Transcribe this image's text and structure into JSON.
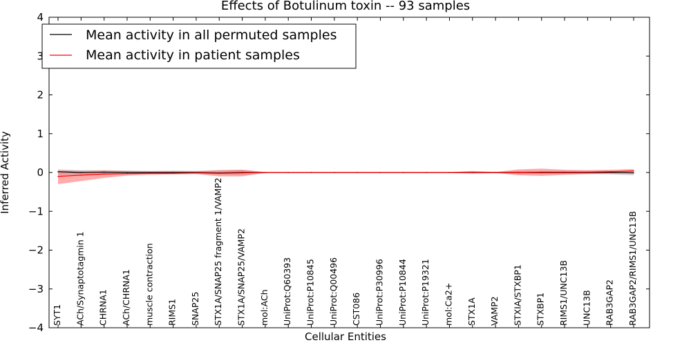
{
  "chart_data": {
    "type": "line",
    "title": "Effects of Botulinum toxin -- 93 samples",
    "xlabel": "Cellular Entities",
    "ylabel": "Inferred Activity",
    "ylim": [
      -4,
      4
    ],
    "yticks": [
      -4,
      -3,
      -2,
      -1,
      0,
      1,
      2,
      3,
      4
    ],
    "yticklabels": [
      "−4",
      "−3",
      "−2",
      "−1",
      "0",
      "1",
      "2",
      "3",
      "4"
    ],
    "categories": [
      "SYT1",
      "ACh/Synaptotagmin 1",
      "CHRNA1",
      "ACh/CHRNA1",
      "muscle contraction",
      "RIMS1",
      "SNAP25",
      "STX1A/SNAP25 fragment 1/VAMP2",
      "STX1A/SNAP25/VAMP2",
      "mol:ACh",
      "UniProt:Q60393",
      "UniProt:P10845",
      "UniProt:Q00496",
      "CST086",
      "UniProt:P30996",
      "UniProt:P10844",
      "UniProt:P19321",
      "mol:Ca2+",
      "STX1A",
      "VAMP2",
      "STXIA/STXBP1",
      "STXBP1",
      "RIMS1/UNC13B",
      "UNC13B",
      "RAB3GAP2",
      "RAB3GAP2/RIMS1/UNC13B"
    ],
    "legend_location": "upper left",
    "series": [
      {
        "name": "Mean activity in all permuted samples",
        "color": "#000000",
        "band_color": "#a0a0a0",
        "values": [
          0.02,
          0.0,
          0.01,
          0.0,
          0.0,
          0.0,
          0.0,
          -0.01,
          0.0,
          0.0,
          0.0,
          0.0,
          0.0,
          0.0,
          0.0,
          0.0,
          0.0,
          0.0,
          0.0,
          0.0,
          0.0,
          0.0,
          0.0,
          0.0,
          0.0,
          -0.01
        ],
        "lower": [
          -0.06,
          -0.06,
          -0.05,
          -0.04,
          -0.04,
          -0.04,
          -0.03,
          -0.06,
          -0.07,
          -0.01,
          -0.01,
          -0.01,
          -0.01,
          -0.01,
          -0.01,
          -0.01,
          -0.01,
          -0.01,
          -0.03,
          -0.02,
          -0.04,
          -0.04,
          -0.04,
          -0.04,
          -0.05,
          -0.07
        ],
        "upper": [
          0.08,
          0.06,
          0.06,
          0.05,
          0.04,
          0.05,
          0.04,
          0.06,
          0.07,
          0.01,
          0.01,
          0.01,
          0.01,
          0.01,
          0.01,
          0.01,
          0.01,
          0.01,
          0.03,
          0.02,
          0.04,
          0.04,
          0.04,
          0.04,
          0.04,
          0.05
        ]
      },
      {
        "name": "Mean activity in patient samples",
        "color": "#ff0000",
        "band_color": "#ff6666",
        "values": [
          -0.1,
          -0.07,
          -0.04,
          -0.03,
          -0.02,
          -0.02,
          -0.01,
          -0.02,
          -0.01,
          0.0,
          0.0,
          0.0,
          0.0,
          0.0,
          0.0,
          0.0,
          0.0,
          0.0,
          0.0,
          0.0,
          0.0,
          0.01,
          0.01,
          0.01,
          0.02,
          0.04
        ],
        "lower": [
          -0.3,
          -0.22,
          -0.14,
          -0.08,
          -0.06,
          -0.05,
          -0.04,
          -0.1,
          -0.1,
          -0.01,
          -0.01,
          -0.01,
          -0.01,
          -0.01,
          -0.01,
          -0.01,
          -0.01,
          -0.01,
          -0.02,
          -0.01,
          -0.07,
          -0.09,
          -0.06,
          -0.04,
          -0.02,
          -0.01
        ],
        "upper": [
          0.05,
          0.04,
          0.05,
          0.04,
          0.03,
          0.03,
          0.03,
          0.06,
          0.07,
          0.01,
          0.01,
          0.01,
          0.01,
          0.01,
          0.01,
          0.01,
          0.01,
          0.01,
          0.04,
          0.01,
          0.08,
          0.1,
          0.07,
          0.06,
          0.07,
          0.09
        ]
      }
    ]
  }
}
